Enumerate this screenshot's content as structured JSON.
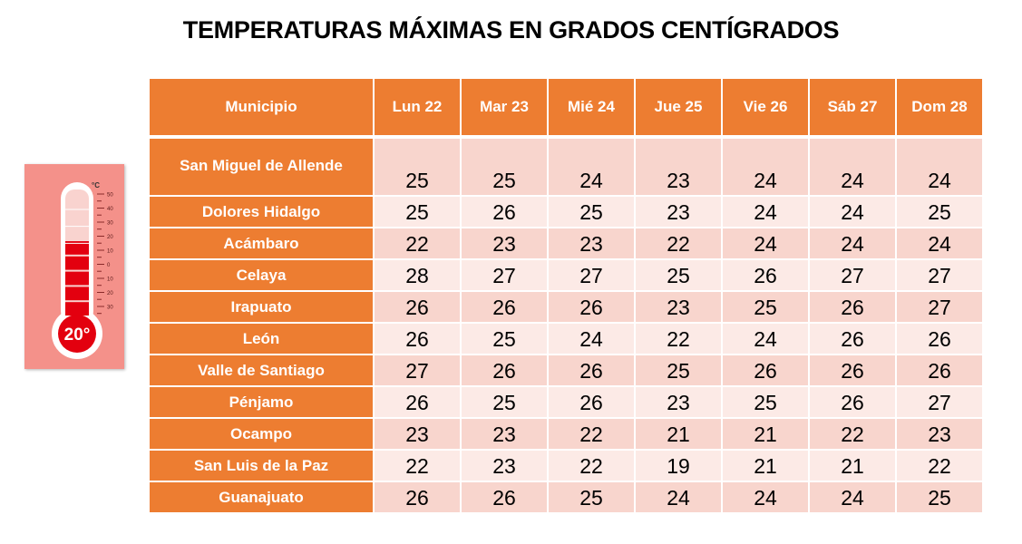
{
  "title": "TEMPERATURAS MÁXIMAS EN GRADOS CENTÍGRADOS",
  "table": {
    "headers": [
      "Municipio",
      "Lun 22",
      "Mar 23",
      "Mié 24",
      "Jue 25",
      "Vie 26",
      "Sáb 27",
      "Dom 28"
    ],
    "rows": [
      {
        "name": "San Miguel de Allende",
        "values": [
          25,
          25,
          24,
          23,
          24,
          24,
          24
        ]
      },
      {
        "name": "Dolores Hidalgo",
        "values": [
          25,
          26,
          25,
          23,
          24,
          24,
          25
        ]
      },
      {
        "name": "Acámbaro",
        "values": [
          22,
          23,
          23,
          22,
          24,
          24,
          24
        ]
      },
      {
        "name": "Celaya",
        "values": [
          28,
          27,
          27,
          25,
          26,
          27,
          27
        ]
      },
      {
        "name": "Irapuato",
        "values": [
          26,
          26,
          26,
          23,
          25,
          26,
          27
        ]
      },
      {
        "name": "León",
        "values": [
          26,
          25,
          24,
          22,
          24,
          26,
          26
        ]
      },
      {
        "name": "Valle de Santiago",
        "values": [
          27,
          26,
          26,
          25,
          26,
          26,
          26
        ]
      },
      {
        "name": "Pénjamo",
        "values": [
          26,
          25,
          26,
          23,
          25,
          26,
          27
        ]
      },
      {
        "name": "Ocampo",
        "values": [
          23,
          23,
          22,
          21,
          21,
          22,
          23
        ]
      },
      {
        "name": "San Luis de la Paz",
        "values": [
          22,
          23,
          22,
          19,
          21,
          21,
          22
        ]
      },
      {
        "name": "Guanajuato",
        "values": [
          26,
          26,
          25,
          24,
          24,
          24,
          25
        ]
      }
    ]
  },
  "thermometer": {
    "icon": "thermometer-icon",
    "reading": "20°",
    "unit": "°C",
    "scale": [
      "50",
      "40",
      "30",
      "20",
      "10",
      "0",
      "10",
      "20",
      "30"
    ],
    "fill_level_fraction": 0.6
  },
  "colors": {
    "header": "#ED7D31",
    "row_odd": "#F8D5CD",
    "row_even": "#FCEAE6",
    "thermo_bg": "#F4918A",
    "mercury": "#E3000F"
  }
}
